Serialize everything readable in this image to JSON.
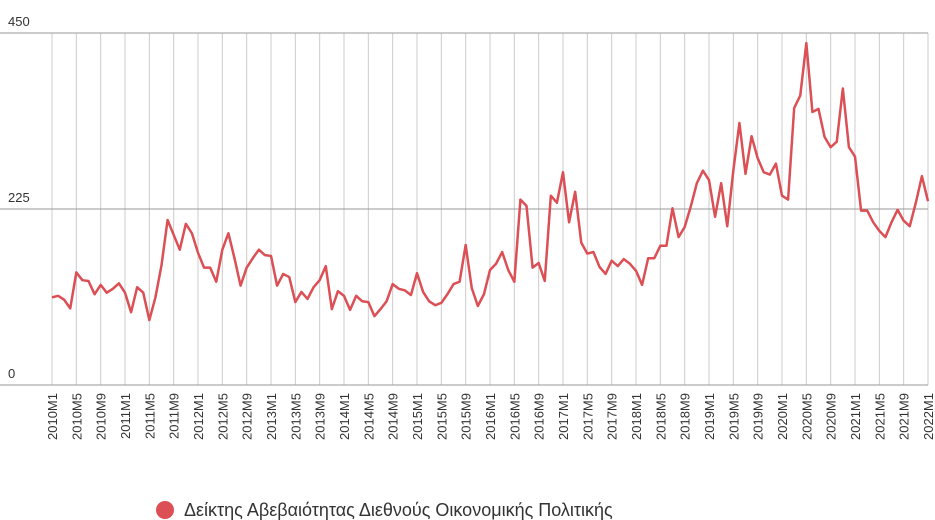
{
  "chart_data": {
    "type": "line",
    "categories": [
      "2010M1",
      null,
      null,
      null,
      "2010M5",
      null,
      null,
      null,
      "2010M9",
      null,
      null,
      null,
      "2011M1",
      null,
      null,
      null,
      "2011M5",
      null,
      null,
      null,
      "2011M9",
      null,
      null,
      null,
      "2012M1",
      null,
      null,
      null,
      "2012M5",
      null,
      null,
      null,
      "2012M9",
      null,
      null,
      null,
      "2013M1",
      null,
      null,
      null,
      "2013M5",
      null,
      null,
      null,
      "2013M9",
      null,
      null,
      null,
      "2014M1",
      null,
      null,
      null,
      "2014M5",
      null,
      null,
      null,
      "2014M9",
      null,
      null,
      null,
      "2015M1",
      null,
      null,
      null,
      "2015M5",
      null,
      null,
      null,
      "2015M9",
      null,
      null,
      null,
      "2016M1",
      null,
      null,
      null,
      "2016M5",
      null,
      null,
      null,
      "2016M9",
      null,
      null,
      null,
      "2017M1",
      null,
      null,
      null,
      "2017M5",
      null,
      null,
      null,
      "2017M9",
      null,
      null,
      null,
      "2018M1",
      null,
      null,
      null,
      "2018M5",
      null,
      null,
      null,
      "2018M9",
      null,
      null,
      null,
      "2019M1",
      null,
      null,
      null,
      "2019M5",
      null,
      null,
      null,
      "2019M9",
      null,
      null,
      null,
      "2020M1",
      null,
      null,
      null,
      "2020M5",
      null,
      null,
      null,
      "2020M9",
      null,
      null,
      null,
      "2021M1",
      null,
      null,
      null,
      "2021M5",
      null,
      null,
      null,
      "2021M9",
      null,
      null,
      null,
      "2022M1"
    ],
    "series": [
      {
        "name": "Δείκτης Αβεβαιότητας Διεθνούς Οικονομικής Πολιτικής",
        "color": "#db4f55",
        "values": [
          112,
          114,
          109,
          98,
          144,
          134,
          133,
          116,
          128,
          118,
          123,
          130,
          118,
          93,
          125,
          118,
          83,
          112,
          153,
          211,
          192,
          173,
          206,
          194,
          169,
          150,
          150,
          132,
          173,
          194,
          162,
          127,
          150,
          162,
          173,
          166,
          165,
          127,
          142,
          138,
          106,
          119,
          110,
          125,
          134,
          152,
          97,
          120,
          114,
          96,
          114,
          107,
          106,
          88,
          97,
          107,
          129,
          123,
          121,
          115,
          143,
          119,
          107,
          102,
          105,
          116,
          129,
          132,
          179,
          124,
          101,
          116,
          147,
          155,
          170,
          147,
          132,
          237,
          229,
          150,
          156,
          133,
          242,
          233,
          272,
          208,
          247,
          182,
          168,
          170,
          151,
          142,
          159,
          152,
          161,
          155,
          146,
          128,
          162,
          162,
          178,
          178,
          226,
          189,
          202,
          228,
          258,
          274,
          262,
          215,
          258,
          203,
          274,
          335,
          270,
          318,
          290,
          272,
          269,
          283,
          242,
          237,
          354,
          370,
          437,
          349,
          353,
          317,
          304,
          311,
          379,
          304,
          292,
          223,
          223,
          208,
          197,
          189,
          208,
          224,
          210,
          203,
          233,
          267,
          235
        ]
      }
    ],
    "ylim": [
      0,
      450
    ],
    "yticks": [
      0,
      225,
      450
    ],
    "grid": true
  }
}
